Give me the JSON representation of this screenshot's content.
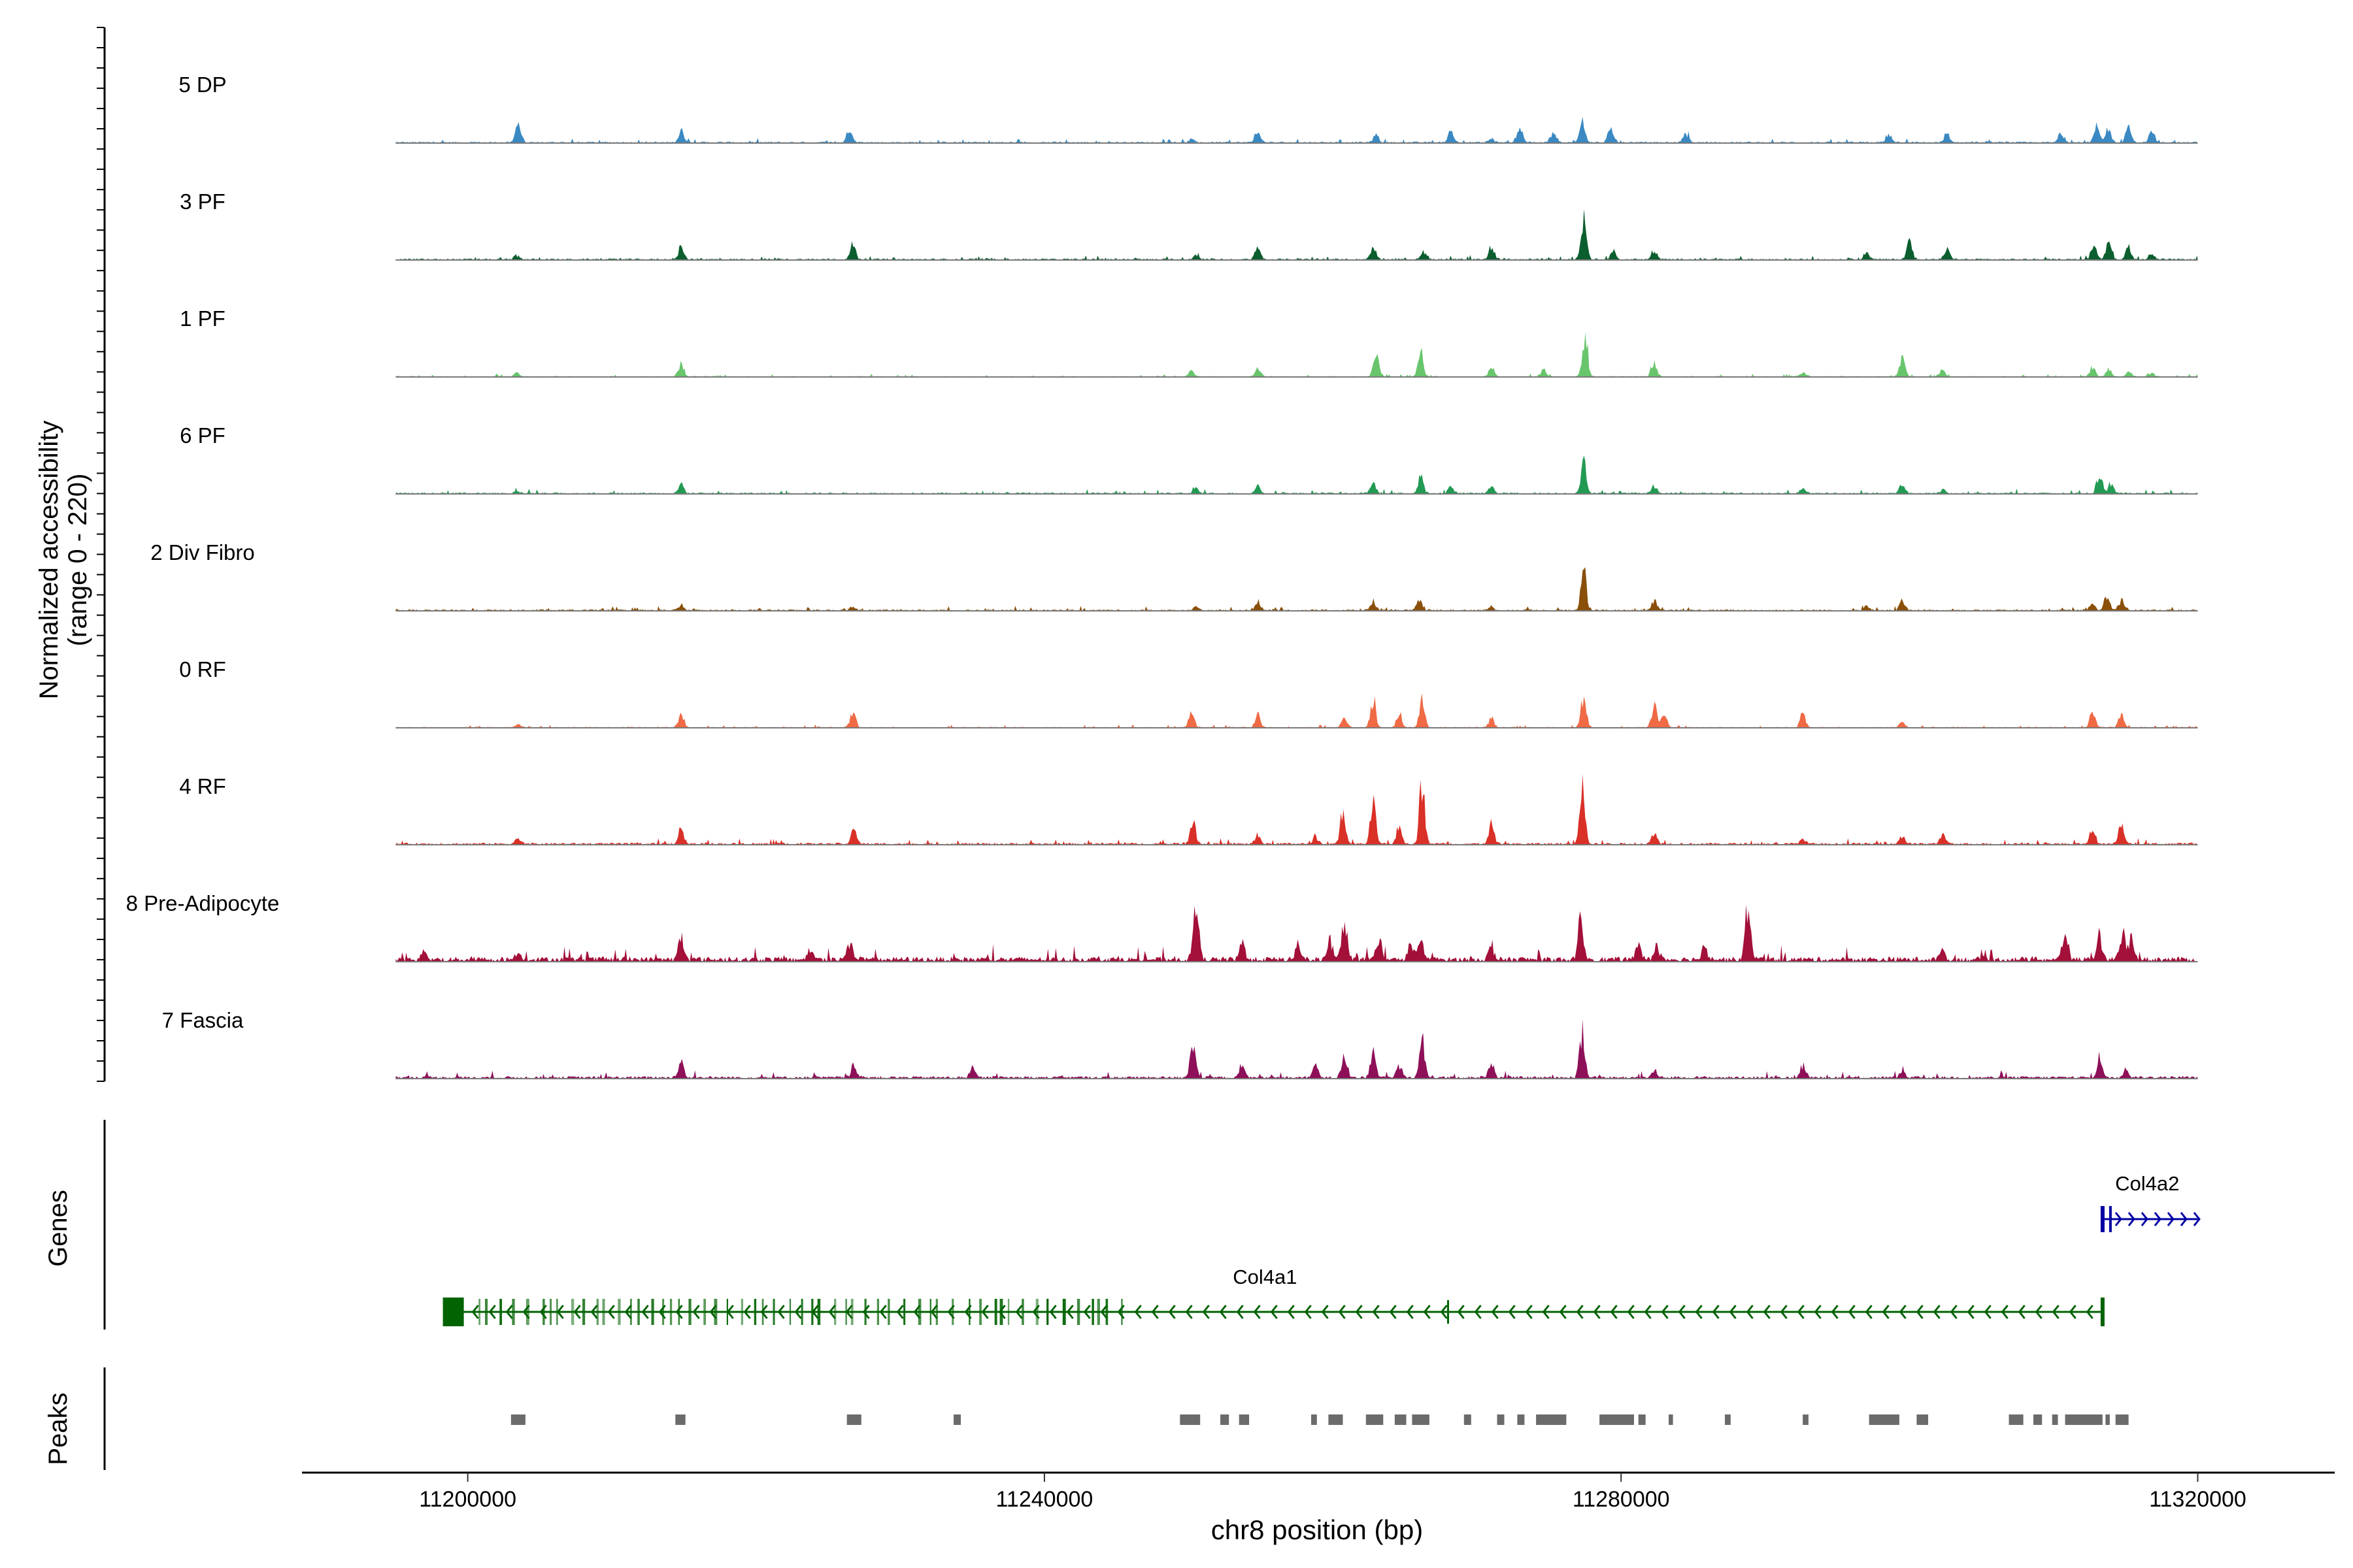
{
  "chart_data": {
    "type": "area",
    "title": "",
    "xlabel": "chr8 position (bp)",
    "ylabel_line1": "Normalized accessibility",
    "ylabel_line2": "(range 0 - 220)",
    "ylim": [
      0,
      220
    ],
    "xlim": [
      11188500,
      11329500
    ],
    "x_ticks": [
      11200000,
      11240000,
      11280000,
      11320000
    ],
    "x_tick_labels": [
      "11200000",
      "11240000",
      "11280000",
      "11320000"
    ],
    "track_start": 11195000,
    "track_end": 11320000,
    "series": [
      {
        "name": "5 DP",
        "color": "#3a89c2",
        "peaks": [
          [
            11203500,
            50
          ],
          [
            11214800,
            30
          ],
          [
            11226500,
            40
          ],
          [
            11250200,
            8
          ],
          [
            11254800,
            30
          ],
          [
            11263000,
            20
          ],
          [
            11268200,
            30
          ],
          [
            11271000,
            10
          ],
          [
            11273000,
            45
          ],
          [
            11275300,
            30
          ],
          [
            11277300,
            70
          ],
          [
            11279300,
            45
          ],
          [
            11284500,
            25
          ],
          [
            11298600,
            20
          ],
          [
            11302600,
            20
          ],
          [
            11310500,
            25
          ],
          [
            11313000,
            45
          ],
          [
            11313800,
            40
          ],
          [
            11315200,
            40
          ],
          [
            11316800,
            25
          ]
        ],
        "noise": 3
      },
      {
        "name": "3 PF",
        "color": "#0b5e2e",
        "peaks": [
          [
            11203400,
            10
          ],
          [
            11214800,
            30
          ],
          [
            11226700,
            45
          ],
          [
            11250500,
            10
          ],
          [
            11254800,
            30
          ],
          [
            11262800,
            35
          ],
          [
            11266300,
            20
          ],
          [
            11271000,
            35
          ],
          [
            11277400,
            120
          ],
          [
            11279500,
            20
          ],
          [
            11282300,
            25
          ],
          [
            11297000,
            20
          ],
          [
            11300000,
            55
          ],
          [
            11302600,
            25
          ],
          [
            11312800,
            50
          ],
          [
            11313800,
            45
          ],
          [
            11315200,
            35
          ],
          [
            11316800,
            20
          ]
        ],
        "noise": 3
      },
      {
        "name": "1 PF",
        "color": "#68c56c",
        "peaks": [
          [
            11203400,
            10
          ],
          [
            11214800,
            40
          ],
          [
            11250200,
            15
          ],
          [
            11254800,
            20
          ],
          [
            11263000,
            55
          ],
          [
            11266100,
            65
          ],
          [
            11271000,
            25
          ],
          [
            11274600,
            20
          ],
          [
            11277500,
            115
          ],
          [
            11282300,
            45
          ],
          [
            11292600,
            12
          ],
          [
            11299500,
            60
          ],
          [
            11302300,
            15
          ],
          [
            11312700,
            25
          ],
          [
            11313800,
            20
          ],
          [
            11315200,
            15
          ],
          [
            11316800,
            10
          ]
        ],
        "noise": 2
      },
      {
        "name": "6 PF",
        "color": "#239a54",
        "peaks": [
          [
            11203400,
            5
          ],
          [
            11214800,
            25
          ],
          [
            11250500,
            12
          ],
          [
            11254800,
            20
          ],
          [
            11262800,
            25
          ],
          [
            11266100,
            45
          ],
          [
            11268200,
            20
          ],
          [
            11271000,
            20
          ],
          [
            11277400,
            85
          ],
          [
            11282300,
            20
          ],
          [
            11292600,
            12
          ],
          [
            11299500,
            25
          ],
          [
            11302300,
            10
          ],
          [
            11313200,
            55
          ],
          [
            11314000,
            30
          ]
        ],
        "noise": 3
      },
      {
        "name": "2 Div Fibro",
        "color": "#8a4f09",
        "peaks": [
          [
            11214800,
            15
          ],
          [
            11226700,
            10
          ],
          [
            11250500,
            10
          ],
          [
            11254800,
            25
          ],
          [
            11262800,
            25
          ],
          [
            11266000,
            25
          ],
          [
            11271000,
            10
          ],
          [
            11277400,
            105
          ],
          [
            11282300,
            25
          ],
          [
            11297000,
            10
          ],
          [
            11299500,
            25
          ],
          [
            11312700,
            20
          ],
          [
            11313700,
            45
          ],
          [
            11314700,
            25
          ]
        ],
        "noise": 3
      },
      {
        "name": "0 RF",
        "color": "#ef6a45",
        "peaks": [
          [
            11203500,
            8
          ],
          [
            11214800,
            40
          ],
          [
            11226700,
            40
          ],
          [
            11250200,
            40
          ],
          [
            11254800,
            35
          ],
          [
            11260800,
            25
          ],
          [
            11262800,
            75
          ],
          [
            11264600,
            40
          ],
          [
            11266200,
            95
          ],
          [
            11271000,
            25
          ],
          [
            11277400,
            90
          ],
          [
            11282300,
            55
          ],
          [
            11283000,
            40
          ],
          [
            11292600,
            35
          ],
          [
            11299500,
            15
          ],
          [
            11312700,
            40
          ],
          [
            11314700,
            35
          ]
        ],
        "noise": 2
      },
      {
        "name": "4 RF",
        "color": "#d93027",
        "peaks": [
          [
            11203500,
            15
          ],
          [
            11214800,
            45
          ],
          [
            11226800,
            45
          ],
          [
            11250300,
            70
          ],
          [
            11254800,
            25
          ],
          [
            11258800,
            20
          ],
          [
            11260700,
            85
          ],
          [
            11262800,
            110
          ],
          [
            11264600,
            50
          ],
          [
            11266200,
            175
          ],
          [
            11271000,
            50
          ],
          [
            11277300,
            170
          ],
          [
            11282300,
            35
          ],
          [
            11292600,
            15
          ],
          [
            11299500,
            25
          ],
          [
            11302300,
            25
          ],
          [
            11312700,
            40
          ],
          [
            11314700,
            60
          ]
        ],
        "noise": 4
      },
      {
        "name": "8 Pre-Adipocyte",
        "color": "#a3103a",
        "peaks": [
          [
            11197000,
            20
          ],
          [
            11203500,
            20
          ],
          [
            11214800,
            60
          ],
          [
            11223800,
            30
          ],
          [
            11226500,
            50
          ],
          [
            11250500,
            165
          ],
          [
            11253700,
            50
          ],
          [
            11257600,
            40
          ],
          [
            11259800,
            50
          ],
          [
            11260800,
            105
          ],
          [
            11263200,
            55
          ],
          [
            11265400,
            45
          ],
          [
            11266100,
            55
          ],
          [
            11271000,
            40
          ],
          [
            11277200,
            110
          ],
          [
            11281200,
            45
          ],
          [
            11282500,
            40
          ],
          [
            11285800,
            40
          ],
          [
            11288800,
            165
          ],
          [
            11302300,
            30
          ],
          [
            11310800,
            80
          ],
          [
            11313200,
            60
          ],
          [
            11314800,
            85
          ],
          [
            11315400,
            55
          ]
        ],
        "noise": 10
      },
      {
        "name": "7 Fascia",
        "color": "#8e1059",
        "peaks": [
          [
            11214800,
            45
          ],
          [
            11226800,
            35
          ],
          [
            11235000,
            30
          ],
          [
            11250300,
            105
          ],
          [
            11253700,
            35
          ],
          [
            11258800,
            30
          ],
          [
            11260800,
            75
          ],
          [
            11262800,
            70
          ],
          [
            11264600,
            35
          ],
          [
            11266200,
            105
          ],
          [
            11271000,
            45
          ],
          [
            11277300,
            120
          ],
          [
            11282300,
            20
          ],
          [
            11292600,
            35
          ],
          [
            11299500,
            15
          ],
          [
            11313200,
            55
          ],
          [
            11315000,
            25
          ]
        ],
        "noise": 5
      }
    ],
    "genes": [
      {
        "name": "Col4a1",
        "start": 11199000,
        "end": 11313400,
        "strand": "-",
        "color": "#016301"
      },
      {
        "name": "Col4a2",
        "start": 11313400,
        "end": 11320000,
        "strand": "+",
        "color": "#0000a3"
      }
    ],
    "peaks_track": [
      [
        11203000,
        11204000
      ],
      [
        11214400,
        11215100
      ],
      [
        11226300,
        11227300
      ],
      [
        11233700,
        11234200
      ],
      [
        11249400,
        11250800
      ],
      [
        11252200,
        11252800
      ],
      [
        11253500,
        11254200
      ],
      [
        11258500,
        11258900
      ],
      [
        11259700,
        11260700
      ],
      [
        11262300,
        11263500
      ],
      [
        11264300,
        11265100
      ],
      [
        11265500,
        11266700
      ],
      [
        11269100,
        11269600
      ],
      [
        11271400,
        11271900
      ],
      [
        11272800,
        11273300
      ],
      [
        11274100,
        11276200
      ],
      [
        11278500,
        11280900
      ],
      [
        11281200,
        11281700
      ],
      [
        11283300,
        11283600
      ],
      [
        11287200,
        11287600
      ],
      [
        11292600,
        11293000
      ],
      [
        11297200,
        11299300
      ],
      [
        11300500,
        11301300
      ],
      [
        11306900,
        11307900
      ],
      [
        11308600,
        11309200
      ],
      [
        11309900,
        11310300
      ],
      [
        11310800,
        11313400
      ],
      [
        11313600,
        11313900
      ],
      [
        11314300,
        11315200
      ]
    ],
    "track_titles": {
      "genes": "Genes",
      "peaks": "Peaks"
    }
  }
}
